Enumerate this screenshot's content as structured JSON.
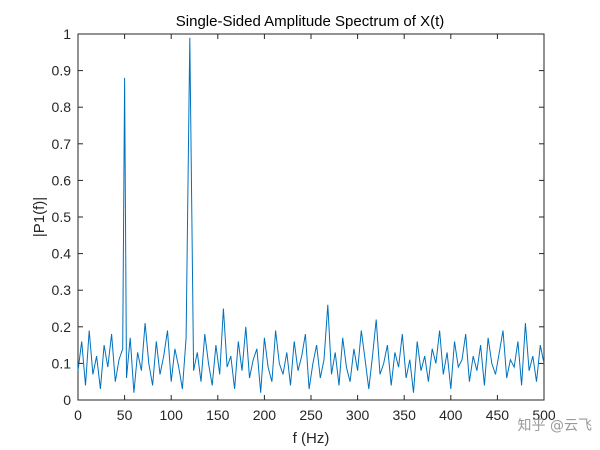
{
  "chart_data": {
    "type": "line",
    "title": "Single-Sided Amplitude Spectrum of X(t)",
    "xlabel": "f (Hz)",
    "ylabel": "|P1(f)|",
    "xlim": [
      0,
      500
    ],
    "ylim": [
      0,
      1
    ],
    "xticks": [
      0,
      50,
      100,
      150,
      200,
      250,
      300,
      350,
      400,
      450,
      500
    ],
    "yticks": [
      0,
      0.1,
      0.2,
      0.3,
      0.4,
      0.5,
      0.6,
      0.7,
      0.8,
      0.9,
      1
    ],
    "ytick_labels": [
      "0",
      "0.1",
      "0.2",
      "0.3",
      "0.4",
      "0.5",
      "0.6",
      "0.7",
      "0.8",
      "0.9",
      "1"
    ],
    "grid": false,
    "line_color": "#0072bd",
    "series": [
      {
        "x": [
          0,
          4,
          8,
          12,
          16,
          20,
          24,
          28,
          32,
          36,
          40,
          44,
          48,
          50,
          52,
          56,
          60,
          64,
          68,
          72,
          76,
          80,
          84,
          88,
          92,
          96,
          100,
          104,
          108,
          112,
          116,
          120,
          124,
          128,
          132,
          136,
          140,
          144,
          148,
          152,
          156,
          160,
          164,
          168,
          172,
          176,
          180,
          184,
          188,
          192,
          196,
          200,
          204,
          208,
          212,
          216,
          220,
          224,
          228,
          232,
          236,
          240,
          244,
          248,
          252,
          256,
          260,
          264,
          268,
          272,
          276,
          280,
          284,
          288,
          292,
          296,
          300,
          304,
          308,
          312,
          316,
          320,
          324,
          328,
          332,
          336,
          340,
          344,
          348,
          352,
          356,
          360,
          364,
          368,
          372,
          376,
          380,
          384,
          388,
          392,
          396,
          400,
          404,
          408,
          412,
          416,
          420,
          424,
          428,
          432,
          436,
          440,
          444,
          448,
          452,
          456,
          460,
          464,
          468,
          472,
          476,
          480,
          484,
          488,
          492,
          496,
          500
        ],
        "y": [
          0.08,
          0.16,
          0.04,
          0.19,
          0.07,
          0.12,
          0.03,
          0.15,
          0.09,
          0.18,
          0.05,
          0.11,
          0.14,
          0.88,
          0.06,
          0.17,
          0.02,
          0.13,
          0.08,
          0.21,
          0.1,
          0.04,
          0.16,
          0.07,
          0.12,
          0.19,
          0.05,
          0.14,
          0.09,
          0.03,
          0.17,
          0.99,
          0.08,
          0.13,
          0.05,
          0.18,
          0.1,
          0.04,
          0.15,
          0.07,
          0.25,
          0.09,
          0.12,
          0.03,
          0.16,
          0.08,
          0.2,
          0.06,
          0.11,
          0.14,
          0.02,
          0.17,
          0.09,
          0.05,
          0.19,
          0.1,
          0.07,
          0.13,
          0.04,
          0.16,
          0.08,
          0.12,
          0.18,
          0.03,
          0.1,
          0.15,
          0.06,
          0.11,
          0.26,
          0.07,
          0.13,
          0.04,
          0.17,
          0.09,
          0.05,
          0.14,
          0.08,
          0.19,
          0.11,
          0.03,
          0.12,
          0.22,
          0.07,
          0.1,
          0.15,
          0.04,
          0.13,
          0.09,
          0.18,
          0.06,
          0.11,
          0.02,
          0.16,
          0.08,
          0.12,
          0.05,
          0.14,
          0.1,
          0.19,
          0.07,
          0.13,
          0.03,
          0.16,
          0.09,
          0.11,
          0.18,
          0.05,
          0.12,
          0.08,
          0.15,
          0.04,
          0.17,
          0.1,
          0.07,
          0.13,
          0.19,
          0.06,
          0.11,
          0.09,
          0.16,
          0.04,
          0.21,
          0.08,
          0.12,
          0.05,
          0.15,
          0.1
        ]
      }
    ]
  },
  "watermark": "知乎 @云飞"
}
